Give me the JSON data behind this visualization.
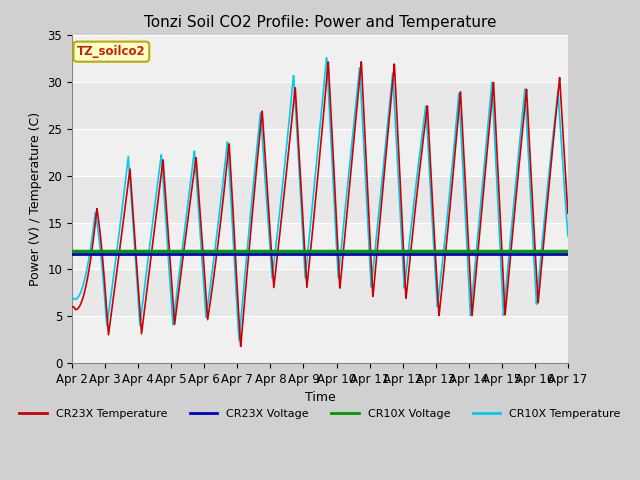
{
  "title": "Tonzi Soil CO2 Profile: Power and Temperature",
  "xlabel": "Time",
  "ylabel": "Power (V) / Temperature (C)",
  "xlim": [
    0,
    15
  ],
  "ylim": [
    0,
    35
  ],
  "yticks": [
    0,
    5,
    10,
    15,
    20,
    25,
    30,
    35
  ],
  "xtick_labels": [
    "Apr 2",
    "Apr 3",
    "Apr 4",
    "Apr 5",
    "Apr 6",
    "Apr 7",
    "Apr 8",
    "Apr 9",
    "Apr 10",
    "Apr 11",
    "Apr 12",
    "Apr 13",
    "Apr 14",
    "Apr 15",
    "Apr 16",
    "Apr 17"
  ],
  "cr23x_voltage_value": 11.6,
  "cr10x_voltage_value": 11.95,
  "cr23x_color": "#cc0000",
  "cr23x_voltage_color": "#0000cc",
  "cr10x_voltage_color": "#009900",
  "cr10x_color": "#00ccee",
  "legend_label_cr23x_temp": "CR23X Temperature",
  "legend_label_cr23x_volt": "CR23X Voltage",
  "legend_label_cr10x_volt": "CR10X Voltage",
  "legend_label_cr10x_temp": "CR10X Temperature",
  "watermark_text": "TZ_soilco2",
  "fig_bg_color": "#d0d0d0",
  "plot_bg_color": "#e8e8e8",
  "plot_bg_light": "#f0f0f0",
  "grid_color": "#ffffff",
  "title_fontsize": 11,
  "axis_label_fontsize": 9,
  "tick_fontsize": 8.5
}
